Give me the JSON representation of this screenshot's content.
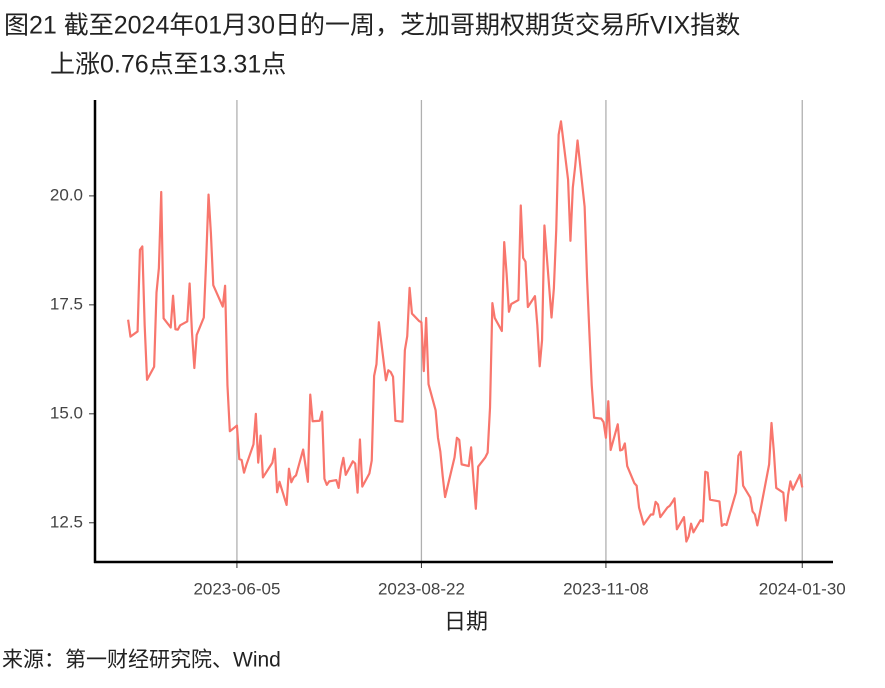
{
  "chart_data": {
    "type": "line",
    "title": [
      "图21  截至2024年01月30日的一周，芝加哥期权期货交易所VIX指数",
      "上涨0.76点至13.31点"
    ],
    "x_label": "日期",
    "source": "来源：第一财经研究院、Wind",
    "xlim": [
      "2023-04-06",
      "2024-02-12"
    ],
    "xticks": [
      "2023-06-05",
      "2023-08-22",
      "2023-11-08",
      "2024-01-30"
    ],
    "ylim": [
      11.6,
      22.2
    ],
    "yticks": [
      12.5,
      {
        "value": 15,
        "label": "15.0"
      },
      17.5,
      {
        "value": 20,
        "label": "20.0"
      }
    ],
    "grid": "x",
    "x": [
      "2023-04-20",
      "2023-04-21",
      "2023-04-24",
      "2023-04-25",
      "2023-04-26",
      "2023-04-27",
      "2023-04-28",
      "2023-05-01",
      "2023-05-02",
      "2023-05-03",
      "2023-05-04",
      "2023-05-05",
      "2023-05-08",
      "2023-05-09",
      "2023-05-10",
      "2023-05-11",
      "2023-05-12",
      "2023-05-15",
      "2023-05-16",
      "2023-05-17",
      "2023-05-18",
      "2023-05-19",
      "2023-05-22",
      "2023-05-23",
      "2023-05-24",
      "2023-05-25",
      "2023-05-26",
      "2023-05-30",
      "2023-05-31",
      "2023-06-01",
      "2023-06-02",
      "2023-06-05",
      "2023-06-06",
      "2023-06-07",
      "2023-06-08",
      "2023-06-09",
      "2023-06-12",
      "2023-06-13",
      "2023-06-14",
      "2023-06-15",
      "2023-06-16",
      "2023-06-20",
      "2023-06-21",
      "2023-06-22",
      "2023-06-23",
      "2023-06-26",
      "2023-06-27",
      "2023-06-28",
      "2023-06-29",
      "2023-06-30",
      "2023-07-03",
      "2023-07-05",
      "2023-07-06",
      "2023-07-07",
      "2023-07-10",
      "2023-07-11",
      "2023-07-12",
      "2023-07-13",
      "2023-07-14",
      "2023-07-17",
      "2023-07-18",
      "2023-07-19",
      "2023-07-20",
      "2023-07-21",
      "2023-07-24",
      "2023-07-25",
      "2023-07-26",
      "2023-07-27",
      "2023-07-28",
      "2023-07-31",
      "2023-08-01",
      "2023-08-02",
      "2023-08-03",
      "2023-08-04",
      "2023-08-07",
      "2023-08-08",
      "2023-08-09",
      "2023-08-10",
      "2023-08-11",
      "2023-08-14",
      "2023-08-15",
      "2023-08-16",
      "2023-08-17",
      "2023-08-18",
      "2023-08-21",
      "2023-08-22",
      "2023-08-23",
      "2023-08-24",
      "2023-08-25",
      "2023-08-28",
      "2023-08-29",
      "2023-08-30",
      "2023-08-31",
      "2023-09-01",
      "2023-09-05",
      "2023-09-06",
      "2023-09-07",
      "2023-09-08",
      "2023-09-11",
      "2023-09-12",
      "2023-09-13",
      "2023-09-14",
      "2023-09-15",
      "2023-09-18",
      "2023-09-19",
      "2023-09-20",
      "2023-09-21",
      "2023-09-22",
      "2023-09-25",
      "2023-09-26",
      "2023-09-27",
      "2023-09-28",
      "2023-09-29",
      "2023-10-02",
      "2023-10-03",
      "2023-10-04",
      "2023-10-05",
      "2023-10-06",
      "2023-10-09",
      "2023-10-10",
      "2023-10-11",
      "2023-10-12",
      "2023-10-13",
      "2023-10-16",
      "2023-10-17",
      "2023-10-18",
      "2023-10-19",
      "2023-10-20",
      "2023-10-23",
      "2023-10-24",
      "2023-10-25",
      "2023-10-26",
      "2023-10-27",
      "2023-10-30",
      "2023-10-31",
      "2023-11-01",
      "2023-11-02",
      "2023-11-03",
      "2023-11-06",
      "2023-11-07",
      "2023-11-08",
      "2023-11-09",
      "2023-11-10",
      "2023-11-13",
      "2023-11-14",
      "2023-11-15",
      "2023-11-16",
      "2023-11-17",
      "2023-11-20",
      "2023-11-21",
      "2023-11-22",
      "2023-11-24",
      "2023-11-27",
      "2023-11-28",
      "2023-11-29",
      "2023-11-30",
      "2023-12-01",
      "2023-12-04",
      "2023-12-05",
      "2023-12-06",
      "2023-12-07",
      "2023-12-08",
      "2023-12-11",
      "2023-12-12",
      "2023-12-13",
      "2023-12-14",
      "2023-12-15",
      "2023-12-18",
      "2023-12-19",
      "2023-12-20",
      "2023-12-21",
      "2023-12-22",
      "2023-12-26",
      "2023-12-27",
      "2023-12-28",
      "2023-12-29",
      "2024-01-02",
      "2024-01-03",
      "2024-01-04",
      "2024-01-05",
      "2024-01-08",
      "2024-01-09",
      "2024-01-10",
      "2024-01-11",
      "2024-01-12",
      "2024-01-16",
      "2024-01-17",
      "2024-01-18",
      "2024-01-19",
      "2024-01-22",
      "2024-01-23",
      "2024-01-24",
      "2024-01-25",
      "2024-01-26",
      "2024-01-29",
      "2024-01-30"
    ],
    "series": [
      {
        "name": "VIX",
        "color": "#f8766d",
        "values": [
          17.16,
          16.77,
          16.89,
          18.76,
          18.84,
          17.03,
          15.78,
          16.08,
          17.78,
          18.34,
          20.09,
          17.19,
          16.98,
          17.71,
          16.94,
          16.93,
          17.03,
          17.12,
          17.99,
          16.87,
          16.05,
          16.81,
          17.21,
          18.53,
          20.03,
          19.14,
          17.95,
          17.46,
          17.94,
          15.65,
          14.6,
          14.73,
          13.96,
          13.94,
          13.65,
          13.83,
          14.3,
          15.0,
          13.88,
          14.5,
          13.54,
          13.88,
          14.2,
          13.2,
          13.44,
          12.91,
          13.74,
          13.43,
          13.54,
          13.59,
          14.18,
          13.44,
          15.44,
          14.83,
          14.84,
          15.05,
          13.51,
          13.37,
          13.45,
          13.48,
          13.3,
          13.74,
          13.99,
          13.6,
          13.91,
          13.86,
          13.19,
          14.41,
          13.33,
          13.63,
          13.93,
          15.87,
          16.14,
          17.1,
          15.77,
          16.0,
          15.96,
          15.85,
          14.84,
          14.82,
          16.46,
          16.78,
          17.89,
          17.3,
          17.13,
          17.1,
          15.98,
          17.2,
          15.68,
          15.08,
          14.45,
          14.13,
          13.57,
          13.09,
          14.0,
          14.45,
          14.4,
          13.84,
          13.8,
          14.23,
          13.48,
          12.82,
          13.79,
          14.0,
          14.11,
          15.14,
          17.54,
          17.2,
          16.9,
          18.94,
          18.22,
          17.34,
          17.52,
          17.61,
          19.78,
          18.58,
          18.49,
          17.45,
          17.7,
          17.03,
          16.09,
          16.69,
          19.32,
          17.21,
          17.88,
          19.22,
          21.4,
          21.71,
          20.37,
          18.97,
          20.19,
          20.68,
          21.27,
          19.75,
          18.14,
          16.87,
          15.66,
          14.91,
          14.89,
          14.81,
          14.45,
          15.29,
          14.17,
          14.76,
          14.16,
          14.18,
          14.32,
          13.8,
          13.41,
          13.35,
          12.85,
          12.46,
          12.69,
          12.69,
          12.98,
          12.92,
          12.63,
          12.85,
          12.89,
          12.97,
          13.06,
          12.35,
          12.63,
          12.07,
          12.19,
          12.48,
          12.28,
          12.56,
          12.53,
          13.67,
          13.65,
          13.03,
          12.99,
          12.43,
          12.47,
          12.45,
          13.2,
          14.04,
          14.13,
          13.35,
          13.08,
          12.76,
          12.69,
          12.44,
          12.7,
          13.84,
          14.79,
          14.13,
          13.3,
          13.19,
          12.55,
          13.14,
          13.45,
          13.26,
          13.6,
          13.31
        ]
      }
    ]
  }
}
